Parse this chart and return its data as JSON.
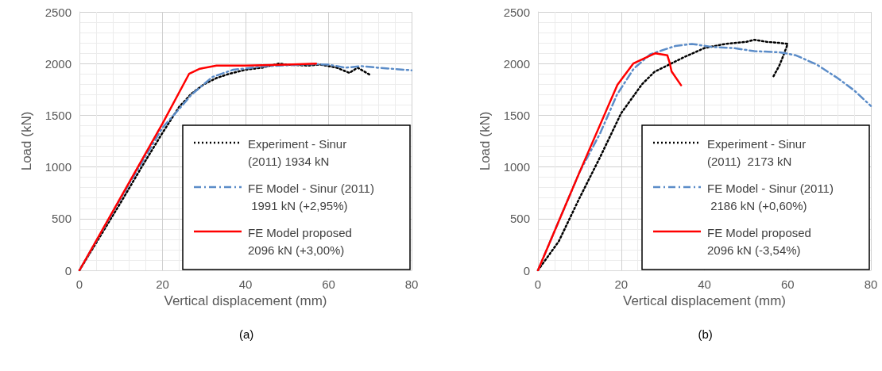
{
  "chart_data": [
    {
      "type": "line",
      "xlabel": "Vertical displacement (mm)",
      "ylabel": "Load (kN)",
      "xlim": [
        0,
        80
      ],
      "xticks": [
        0,
        20,
        40,
        60,
        80
      ],
      "ylim": [
        0,
        2500
      ],
      "yticks": [
        0,
        500,
        1000,
        1500,
        2000,
        2500
      ],
      "grid": true,
      "legend": "bottom right",
      "marker": "none",
      "annotations": [
        "(a)"
      ],
      "series": [
        {
          "name": "Experiment - Sinur (2011) 1934 kN",
          "color": "#000000",
          "line_style": "dotted",
          "x": [
            0,
            5,
            10,
            15,
            20,
            24,
            27,
            30,
            33,
            36,
            40,
            44,
            48,
            50,
            55,
            58,
            62,
            65,
            67,
            70
          ],
          "values": [
            0,
            330,
            660,
            1000,
            1330,
            1580,
            1710,
            1800,
            1860,
            1900,
            1940,
            1960,
            2000,
            1990,
            1980,
            1990,
            1960,
            1910,
            1960,
            1890
          ]
        },
        {
          "name": "FE Model - Sinur (2011) 1991 kN (+2,95%)",
          "color": "#5b8cc8",
          "line_style": "dashed",
          "x": [
            0,
            10,
            20,
            24,
            27,
            32,
            37,
            45,
            57,
            60,
            64,
            68,
            72,
            80
          ],
          "values": [
            0,
            700,
            1380,
            1560,
            1700,
            1870,
            1940,
            1975,
            1995,
            1990,
            1960,
            1975,
            1960,
            1935
          ]
        },
        {
          "name": "FE Model proposed 2096 kN (+3,00%)",
          "color": "#ff0000",
          "line_style": "solid",
          "x": [
            0,
            10,
            20,
            26.4,
            29,
            33,
            40,
            50,
            57
          ],
          "values": [
            0,
            710,
            1420,
            1900,
            1950,
            1980,
            1980,
            1990,
            2000
          ]
        }
      ]
    },
    {
      "type": "line",
      "xlabel": "Vertical displacement (mm)",
      "ylabel": "Load (kN)",
      "xlim": [
        0,
        80
      ],
      "xticks": [
        0,
        20,
        40,
        60,
        80
      ],
      "ylim": [
        0,
        2500
      ],
      "yticks": [
        0,
        500,
        1000,
        1500,
        2000,
        2500
      ],
      "grid": true,
      "legend": "bottom right",
      "marker": "none",
      "annotations": [
        "(b)"
      ],
      "series": [
        {
          "name": "Experiment - Sinur (2011)  2173 kN",
          "color": "#000000",
          "line_style": "dotted",
          "x": [
            0,
            5,
            10,
            15,
            20,
            25,
            28,
            32,
            35,
            40,
            45,
            50,
            52,
            55,
            58,
            60,
            59,
            58,
            56.5
          ],
          "values": [
            0,
            280,
            700,
            1100,
            1520,
            1800,
            1920,
            2000,
            2060,
            2150,
            2190,
            2210,
            2230,
            2210,
            2200,
            2190,
            2080,
            1980,
            1870
          ]
        },
        {
          "name": "FE Model - Sinur (2011) 2186 kN (+0,60%)",
          "color": "#5b8cc8",
          "line_style": "dashed",
          "x": [
            0,
            10,
            15,
            19,
            23,
            27,
            33,
            37,
            42,
            47,
            52,
            58,
            62,
            67,
            72,
            76,
            80
          ],
          "values": [
            0,
            950,
            1330,
            1700,
            1950,
            2090,
            2170,
            2190,
            2160,
            2150,
            2120,
            2110,
            2080,
            1990,
            1860,
            1740,
            1590
          ]
        },
        {
          "name": "FE Model proposed 2096 kN (-3,54%)",
          "color": "#ff0000",
          "line_style": "solid",
          "x": [
            0,
            10,
            19.1,
            22.9,
            28.2,
            31.1,
            31.7,
            32.1,
            34.4
          ],
          "values": [
            0,
            950,
            1795,
            2000,
            2100,
            2080,
            2000,
            1925,
            1790
          ]
        }
      ]
    }
  ]
}
